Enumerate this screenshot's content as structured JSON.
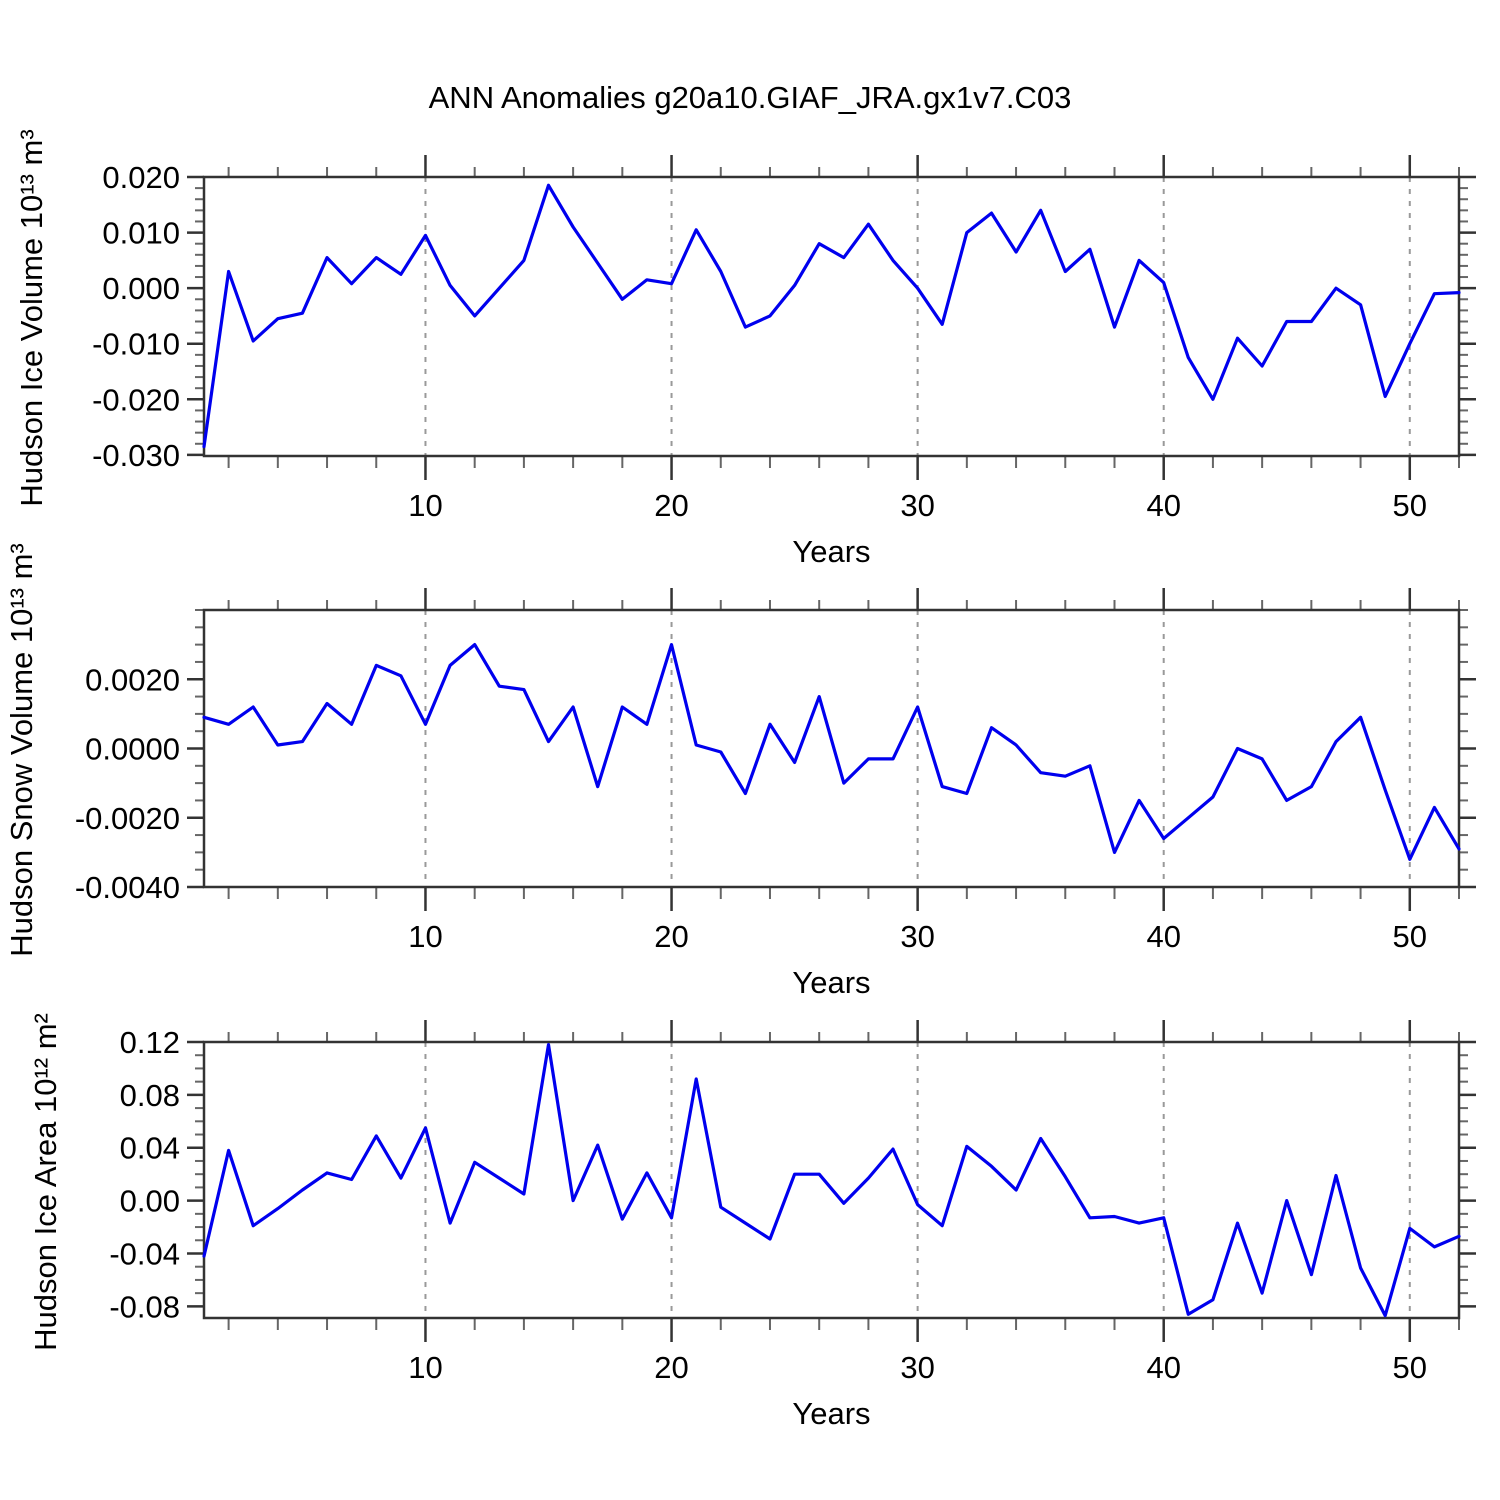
{
  "title": "ANN Anomalies g20a10.GIAF_JRA.gx1v7.C03",
  "colors": {
    "line": "#0000ee",
    "axis": "#333333",
    "minor_tick": "#666666",
    "grid": "#999999",
    "text": "#000000",
    "background": "#ffffff"
  },
  "x_axis": {
    "label": "Years",
    "range": [
      1,
      52
    ],
    "major_ticks": [
      10,
      20,
      30,
      40,
      50
    ],
    "tick_labels": [
      "10",
      "20",
      "30",
      "40",
      "50"
    ],
    "minor_step": 2,
    "grid": "dashed"
  },
  "chart_data": [
    {
      "type": "line",
      "title": "ANN Anomalies g20a10.GIAF_JRA.gx1v7.C03",
      "ylabel": "Hudson Ice Volume 10¹³ m³",
      "xlabel": "Years",
      "legend": "none",
      "x_range": [
        1,
        52
      ],
      "ylim": [
        -0.0302,
        0.02
      ],
      "ytick_values": [
        0.02,
        0.01,
        0.0,
        -0.01,
        -0.02,
        -0.03
      ],
      "ytick_labels": [
        "0.020",
        "0.010",
        "0.000",
        "-0.010",
        "-0.020",
        "-0.030"
      ],
      "yminor_step": 0.002,
      "values": [
        -0.0285,
        0.003,
        -0.0095,
        -0.0055,
        -0.0045,
        0.0055,
        0.0008,
        0.0055,
        0.0025,
        0.0095,
        0.0005,
        -0.005,
        0.0,
        0.005,
        0.0185,
        0.011,
        0.0045,
        -0.002,
        0.0015,
        0.0008,
        0.0105,
        0.003,
        -0.007,
        -0.005,
        0.0005,
        0.008,
        0.0055,
        0.0115,
        0.005,
        0.0,
        -0.0065,
        0.01,
        0.0135,
        0.0065,
        0.014,
        0.003,
        0.007,
        -0.007,
        0.005,
        0.001,
        -0.0125,
        -0.02,
        -0.009,
        -0.014,
        -0.006,
        -0.006,
        0.0,
        -0.003,
        -0.0195,
        -0.01,
        -0.001,
        -0.0008
      ]
    },
    {
      "type": "line",
      "title": "",
      "ylabel": "Hudson Snow Volume 10¹³ m³",
      "xlabel": "Years",
      "legend": "none",
      "x_range": [
        1,
        52
      ],
      "ylim": [
        -0.004,
        0.004
      ],
      "ytick_values": [
        0.002,
        0.0,
        -0.002,
        -0.004
      ],
      "ytick_labels": [
        "0.0020",
        "0.0000",
        "-0.0020",
        "-0.0040"
      ],
      "yminor_step": 0.0005,
      "values": [
        0.0009,
        0.0007,
        0.0012,
        0.0001,
        0.0002,
        0.0013,
        0.0007,
        0.0024,
        0.0021,
        0.0007,
        0.0024,
        0.003,
        0.0018,
        0.0017,
        0.0002,
        0.0012,
        -0.0011,
        0.0012,
        0.0007,
        0.003,
        0.0001,
        -0.0001,
        -0.0013,
        0.0007,
        -0.0004,
        0.0015,
        -0.001,
        -0.0003,
        -0.0003,
        0.0012,
        -0.0011,
        -0.0013,
        0.0006,
        0.0001,
        -0.0007,
        -0.0008,
        -0.0005,
        -0.003,
        -0.0015,
        -0.0026,
        -0.002,
        -0.0014,
        0.0,
        -0.0003,
        -0.0015,
        -0.0011,
        0.0002,
        0.0009,
        -0.0012,
        -0.0032,
        -0.0017,
        -0.0029
      ]
    },
    {
      "type": "line",
      "title": "",
      "ylabel": "Hudson Ice Area 10¹² m²",
      "xlabel": "Years",
      "legend": "none",
      "x_range": [
        1,
        52
      ],
      "ylim": [
        -0.0888,
        0.12
      ],
      "ytick_values": [
        0.12,
        0.08,
        0.04,
        0.0,
        -0.04,
        -0.08
      ],
      "ytick_labels": [
        "0.12",
        "0.08",
        "0.04",
        "0.00",
        "-0.04",
        "-0.08"
      ],
      "yminor_step": 0.01,
      "values": [
        -0.042,
        0.038,
        -0.019,
        -0.006,
        0.008,
        0.021,
        0.016,
        0.049,
        0.017,
        0.055,
        -0.017,
        0.029,
        0.017,
        0.005,
        0.118,
        0.0,
        0.042,
        -0.014,
        0.021,
        -0.013,
        0.092,
        -0.005,
        -0.017,
        -0.029,
        0.02,
        0.02,
        -0.002,
        0.017,
        0.039,
        -0.003,
        -0.019,
        0.041,
        0.026,
        0.008,
        0.047,
        0.018,
        -0.013,
        -0.012,
        -0.017,
        -0.013,
        -0.086,
        -0.075,
        -0.017,
        -0.07,
        0.0,
        -0.056,
        0.019,
        -0.051,
        -0.087,
        -0.021,
        -0.035,
        -0.027
      ]
    }
  ]
}
